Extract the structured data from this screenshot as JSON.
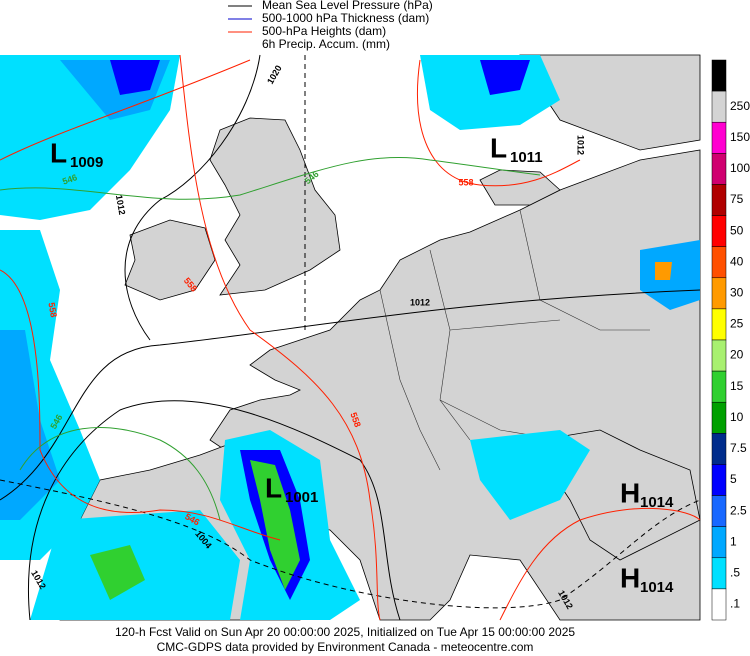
{
  "legend": [
    {
      "text": "Mean Sea Level Pressure (hPa)",
      "color": "#000000"
    },
    {
      "text": "500-1000 hPa Thickness (dam)",
      "color": "#0000cc"
    },
    {
      "text": "500-hPa Heights (dam)",
      "color": "#ff2000"
    },
    {
      "text": "6h Precip. Accum. (mm)"
    }
  ],
  "colorbar": {
    "colors": [
      "#000000",
      "#d4d4d4",
      "#ff00d0",
      "#d00070",
      "#b00000",
      "#ff0000",
      "#ff5000",
      "#ff9a00",
      "#ffff00",
      "#a8f070",
      "#30d030",
      "#00a000",
      "#002c8c",
      "#0000ff",
      "#1868ff",
      "#00a8ff",
      "#00e0ff",
      "#ffffff"
    ],
    "labels": [
      "250",
      "150",
      "100",
      "75",
      "50",
      "40",
      "30",
      "25",
      "20",
      "15",
      "10",
      "7.5",
      "5",
      "2.5",
      "1",
      ".5",
      ".1"
    ]
  },
  "pressure_centers": [
    {
      "letter": "L",
      "value": "1009"
    },
    {
      "letter": "L",
      "value": "1011"
    },
    {
      "letter": "L",
      "value": "1001"
    },
    {
      "letter": "H",
      "value": "1014"
    },
    {
      "letter": "H",
      "value": "1014"
    }
  ],
  "contour_labels": [
    "1020",
    "546",
    "546",
    "1012",
    "558",
    "1012",
    "558",
    "558",
    "546",
    "558",
    "1012",
    "546",
    "1004",
    "1012",
    "1012"
  ],
  "footer": [
    "120-h Fcst Valid on Sun Apr 20 00:00:00 2025, Initialized on Tue Apr 15 00:00:00 2025",
    "CMC-GDPS data provided by Environment Canada - meteocentre.com"
  ]
}
